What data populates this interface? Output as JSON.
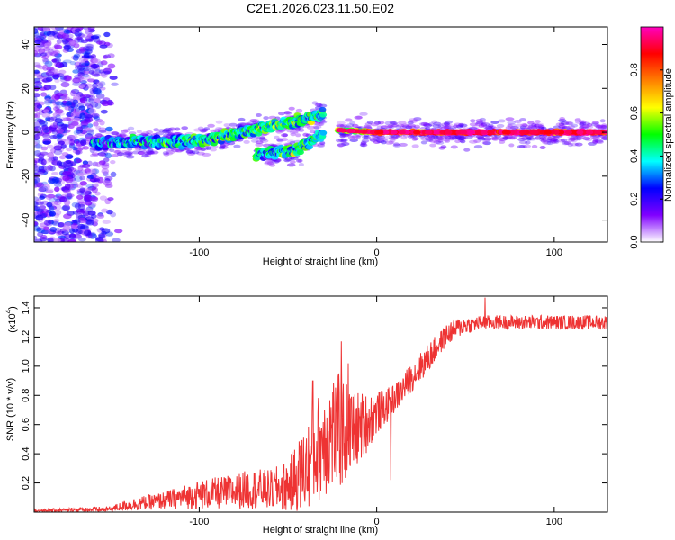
{
  "title": "C2E1.2026.023.11.50.E02",
  "chart_data": [
    {
      "type": "heatmap",
      "xlabel": "Height of straight line (km)",
      "ylabel": "Frequency (Hz)",
      "xlim": [
        -193,
        130
      ],
      "ylim": [
        -50,
        48
      ],
      "xticks": [
        -100,
        0,
        100
      ],
      "xtick_labels": [
        "-100",
        "0",
        "100"
      ],
      "yticks": [
        -40,
        -20,
        0,
        20,
        40
      ],
      "ytick_labels": [
        "-40",
        "-20",
        "0",
        "20",
        "40"
      ],
      "grid": false,
      "colorbar": {
        "label": "Normalized spectral amplitude",
        "range": [
          0,
          1
        ],
        "ticks": [
          0.0,
          0.2,
          0.4,
          0.6,
          0.8
        ],
        "tick_labels": [
          "0.0",
          "0.2",
          "0.4",
          "0.6",
          "0.8"
        ],
        "colormap": [
          "#ffffff",
          "#8000ff",
          "#0000ff",
          "#00ffff",
          "#00ff00",
          "#ffff00",
          "#ff8000",
          "#ff0000",
          "#ff00c0"
        ]
      },
      "noise_region": {
        "x_range": [
          -193,
          -145
        ],
        "freq_range": [
          -50,
          48
        ],
        "amplitude": 0.15
      },
      "tracks": [
        {
          "name": "broadband segment",
          "x": [
            -160,
            -100,
            -50,
            -30
          ],
          "freq": [
            -5,
            -4,
            4,
            8
          ],
          "amplitude": [
            0.3,
            0.4,
            0.45,
            0.4
          ]
        },
        {
          "name": "lower branch",
          "x": [
            -68,
            -45,
            -30
          ],
          "freq": [
            -10,
            -8,
            0
          ],
          "amplitude": [
            0.35,
            0.4,
            0.4
          ]
        },
        {
          "name": "narrowband line",
          "x": [
            -22,
            0,
            50,
            100,
            130
          ],
          "freq": [
            1,
            0,
            0,
            0,
            0
          ],
          "amplitude": [
            0.5,
            0.75,
            0.9,
            0.9,
            0.85
          ]
        }
      ]
    },
    {
      "type": "line",
      "xlabel": "Height of straight line (km)",
      "ylabel": "SNR (10 * v/v)",
      "y_multiplier_label": "(x10",
      "y_multiplier_exp": "4",
      "y_multiplier_close": ")",
      "xlim": [
        -193,
        130
      ],
      "ylim": [
        0,
        1.48
      ],
      "xticks": [
        -100,
        0,
        100
      ],
      "xtick_labels": [
        "-100",
        "0",
        "100"
      ],
      "yticks": [
        0.2,
        0.4,
        0.6,
        0.8,
        1.0,
        1.2,
        1.4
      ],
      "ytick_labels": [
        "0.2",
        "0.4",
        "0.6",
        "0.8",
        "1.0",
        "1.2",
        "1.4"
      ],
      "grid": false,
      "series": [
        {
          "name": "SNR",
          "color": "#ee3333",
          "envelope": {
            "x": [
              -193,
              -150,
              -140,
              -120,
              -100,
              -80,
              -70,
              -60,
              -50,
              -40,
              -35,
              -30,
              -25,
              -20,
              -15,
              -10,
              -5,
              0,
              5,
              10,
              15,
              20,
              25,
              30,
              35,
              40,
              45,
              50,
              60,
              80,
              100,
              130
            ],
            "mean": [
              0.01,
              0.02,
              0.05,
              0.08,
              0.12,
              0.14,
              0.16,
              0.15,
              0.18,
              0.3,
              0.4,
              0.5,
              0.55,
              0.55,
              0.55,
              0.58,
              0.62,
              0.68,
              0.72,
              0.78,
              0.85,
              0.93,
              1.0,
              1.07,
              1.15,
              1.22,
              1.26,
              1.28,
              1.3,
              1.3,
              1.3,
              1.3
            ],
            "spread": [
              0.01,
              0.02,
              0.04,
              0.06,
              0.1,
              0.12,
              0.14,
              0.14,
              0.18,
              0.3,
              0.35,
              0.4,
              0.42,
              0.4,
              0.3,
              0.25,
              0.2,
              0.15,
              0.12,
              0.1,
              0.1,
              0.1,
              0.1,
              0.1,
              0.08,
              0.08,
              0.07,
              0.06,
              0.05,
              0.05,
              0.05,
              0.05
            ]
          },
          "spikes": [
            {
              "x": -36,
              "y": 0.9
            },
            {
              "x": -20,
              "y": 1.17
            },
            {
              "x": -16,
              "y": 1.02
            },
            {
              "x": 8,
              "y": 0.22
            },
            {
              "x": 61,
              "y": 1.47
            }
          ]
        }
      ]
    }
  ]
}
